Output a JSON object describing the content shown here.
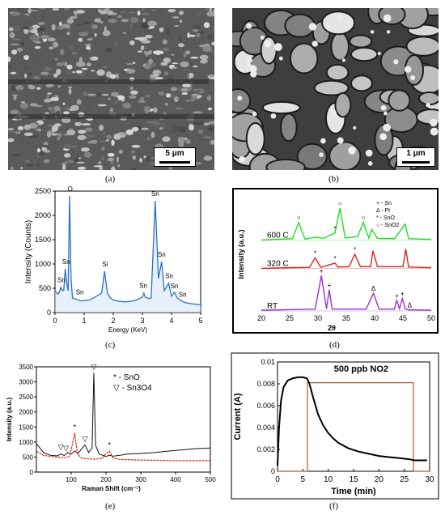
{
  "panels": {
    "a": {
      "caption": "(a)",
      "scale_label": "5 μm"
    },
    "b": {
      "caption": "(b)",
      "scale_label": "1 μm"
    },
    "c": {
      "caption": "(c)"
    },
    "d": {
      "caption": "(d)"
    },
    "e": {
      "caption": "(e)"
    },
    "f": {
      "caption": "(f)"
    }
  },
  "chart_data": [
    {
      "id": "c",
      "type": "line",
      "xlabel": "Energy (KeV)",
      "ylabel": "Intensity (Counts)",
      "xlim": [
        0,
        5
      ],
      "ylim": [
        0,
        2500
      ],
      "xticks": [
        "0",
        "1",
        "2",
        "3",
        "4",
        "5"
      ],
      "yticks": [
        "0",
        "500",
        "1000",
        "1500",
        "2000",
        "2500"
      ],
      "color": "#2f6fc4",
      "series": [
        {
          "x": [
            0.0,
            0.1,
            0.15,
            0.2,
            0.25,
            0.3,
            0.35,
            0.4,
            0.45,
            0.5,
            0.55,
            0.6,
            0.7,
            0.8,
            0.9,
            1.0,
            1.2,
            1.4,
            1.6,
            1.7,
            1.8,
            1.9,
            2.0,
            2.2,
            2.4,
            2.6,
            2.8,
            3.0,
            3.05,
            3.1,
            3.2,
            3.3,
            3.44,
            3.55,
            3.66,
            3.75,
            3.9,
            4.0,
            4.1,
            4.2,
            4.3,
            4.4,
            4.5,
            4.7,
            5.0
          ],
          "y": [
            450,
            380,
            420,
            520,
            450,
            460,
            900,
            620,
            450,
            2400,
            700,
            300,
            280,
            260,
            240,
            250,
            260,
            330,
            400,
            850,
            400,
            300,
            260,
            230,
            220,
            230,
            260,
            320,
            400,
            320,
            290,
            300,
            2300,
            700,
            1050,
            450,
            600,
            340,
            420,
            300,
            260,
            220,
            200,
            180,
            160
          ]
        }
      ],
      "annotations": [
        {
          "label": "O",
          "x": 0.52,
          "y": 2430
        },
        {
          "label": "Sn",
          "x": 0.22,
          "y": 560
        },
        {
          "label": "Sn",
          "x": 0.38,
          "y": 930
        },
        {
          "label": "Sn",
          "x": 0.85,
          "y": 310
        },
        {
          "label": "Si",
          "x": 1.72,
          "y": 880
        },
        {
          "label": "Sn",
          "x": 3.03,
          "y": 440
        },
        {
          "label": "Sn",
          "x": 3.44,
          "y": 2330
        },
        {
          "label": "Sn",
          "x": 3.66,
          "y": 1080
        },
        {
          "label": "Sn",
          "x": 3.92,
          "y": 640
        },
        {
          "label": "Sn",
          "x": 4.1,
          "y": 430
        },
        {
          "label": "Sn",
          "x": 4.38,
          "y": 260
        }
      ]
    },
    {
      "id": "d",
      "type": "line",
      "xlabel": "2θ",
      "ylabel": "Intensity (a.u.)",
      "xlim": [
        20,
        50
      ],
      "xticks": [
        "20",
        "25",
        "30",
        "35",
        "40",
        "45",
        "50"
      ],
      "legend": [
        "+ - Sn",
        "Δ - Pt",
        "* - SnO",
        "○ - SnO2"
      ],
      "series": [
        {
          "name": "600 C",
          "color": "#22dd22",
          "offset": 2.0,
          "x": [
            20,
            25.5,
            26.6,
            27.7,
            29.5,
            31.0,
            33.0,
            33.9,
            34.8,
            37.0,
            38.0,
            39.0,
            39.5,
            40.5,
            43.5,
            45.4,
            46.0,
            48.0,
            50
          ],
          "y": [
            0,
            0.04,
            0.5,
            0.03,
            0.08,
            0.05,
            0.2,
            0.9,
            0.06,
            0.1,
            0.5,
            0.05,
            0.3,
            0.05,
            0.04,
            0.45,
            0.04,
            0.03,
            0.02
          ]
        },
        {
          "name": "320 C",
          "color": "#dd2222",
          "offset": 1.2,
          "x": [
            20,
            25,
            28.5,
            29.5,
            30.5,
            33.0,
            33.5,
            35.5,
            36.5,
            37.5,
            39.3,
            39.7,
            40.5,
            45.0,
            45.5,
            46.0,
            50
          ],
          "y": [
            0,
            0.02,
            0.03,
            0.3,
            0.03,
            0.15,
            0.04,
            0.05,
            0.4,
            0.05,
            0.05,
            0.5,
            0.05,
            0.05,
            0.55,
            0.04,
            0.02
          ]
        },
        {
          "name": "RT",
          "color": "#9933cc",
          "offset": 0.0,
          "x": [
            20,
            29.5,
            30.6,
            31.5,
            32.0,
            32.5,
            38.5,
            39.8,
            40.8,
            43.5,
            43.9,
            44.4,
            44.9,
            45.4,
            46.0,
            50
          ],
          "y": [
            0.02,
            0.05,
            1.0,
            0.06,
            0.6,
            0.05,
            0.05,
            0.5,
            0.05,
            0.05,
            0.3,
            0.06,
            0.35,
            0.06,
            0.03,
            0.02
          ]
        }
      ],
      "annotations": [
        {
          "label": "+",
          "x": 30.6,
          "s": "RT"
        },
        {
          "label": "+",
          "x": 32.0,
          "s": "RT"
        },
        {
          "label": "Δ",
          "x": 39.8,
          "s": "RT"
        },
        {
          "label": "+",
          "x": 43.9,
          "s": "RT"
        },
        {
          "label": "+",
          "x": 44.9,
          "s": "RT"
        },
        {
          "label": "Δ",
          "x": 46.2,
          "s": "RT"
        },
        {
          "label": "*",
          "x": 29.5,
          "s": "320 C"
        },
        {
          "label": "*",
          "x": 33.0,
          "s": "320 C"
        },
        {
          "label": "*",
          "x": 36.5,
          "s": "320 C"
        },
        {
          "label": "○",
          "x": 26.6,
          "s": "600 C"
        },
        {
          "label": "*",
          "x": 33.0,
          "s": "600 C"
        },
        {
          "label": "○",
          "x": 33.9,
          "s": "600 C"
        },
        {
          "label": "○",
          "x": 38.0,
          "s": "600 C"
        }
      ]
    },
    {
      "id": "e",
      "type": "line",
      "xlabel": "Raman Shift (cm⁻¹)",
      "ylabel": "Intensity (a.u.)",
      "xlim": [
        0,
        500
      ],
      "ylim": [
        0,
        3500
      ],
      "xticks": [
        "100",
        "200",
        "300",
        "400",
        "500"
      ],
      "yticks": [
        "0",
        "500",
        "1000",
        "1500",
        "2000",
        "2500",
        "3000",
        "3500"
      ],
      "legend": [
        "* - SnO",
        "▽ - Sn3O4"
      ],
      "series": [
        {
          "name": "black",
          "color": "#111111",
          "x": [
            0,
            20,
            40,
            60,
            70,
            80,
            90,
            100,
            110,
            120,
            130,
            140,
            150,
            160,
            165,
            170,
            180,
            190,
            200,
            210,
            220,
            240,
            260,
            300,
            340,
            380,
            420,
            460,
            500
          ],
          "y": [
            950,
            650,
            560,
            540,
            600,
            550,
            650,
            600,
            700,
            620,
            780,
            900,
            650,
            800,
            3300,
            900,
            600,
            560,
            520,
            560,
            530,
            560,
            600,
            620,
            650,
            700,
            740,
            780,
            800
          ]
        },
        {
          "name": "red",
          "color": "#cc3322",
          "x": [
            0,
            20,
            40,
            60,
            80,
            95,
            105,
            110,
            118,
            130,
            150,
            170,
            190,
            200,
            210,
            220,
            240,
            300,
            400,
            500
          ],
          "y": [
            700,
            560,
            520,
            500,
            480,
            520,
            1000,
            1300,
            600,
            460,
            440,
            430,
            460,
            620,
            700,
            470,
            420,
            400,
            380,
            380
          ]
        }
      ],
      "annotations": [
        {
          "label": "*",
          "x": 110,
          "y": 1420
        },
        {
          "label": "*",
          "x": 210,
          "y": 820
        },
        {
          "label": "▽",
          "x": 165,
          "y": 3420
        },
        {
          "label": "▽",
          "x": 140,
          "y": 1020
        },
        {
          "label": "▽",
          "x": 85,
          "y": 720
        },
        {
          "label": "▽",
          "x": 70,
          "y": 750
        }
      ]
    },
    {
      "id": "f",
      "type": "line",
      "title": "500 ppb NO2",
      "xlabel": "Time (min)",
      "ylabel": "Current (A)",
      "xlim": [
        0,
        30
      ],
      "ylim": [
        0,
        0.01
      ],
      "xticks": [
        "0",
        "5",
        "10",
        "15",
        "20",
        "25",
        "30"
      ],
      "yticks": [
        "0",
        "0.002",
        "0.004",
        "0.006",
        "0.008",
        "0.01"
      ],
      "series": [
        {
          "name": "current",
          "color": "#000000",
          "x": [
            0,
            0.3,
            0.7,
            1.2,
            2,
            3,
            4,
            5,
            5.8,
            6.3,
            7,
            8,
            9,
            10,
            11,
            12,
            14,
            16,
            18,
            20,
            22,
            24,
            26,
            27,
            28,
            29.5
          ],
          "y": [
            0.0005,
            0.004,
            0.0065,
            0.0077,
            0.0083,
            0.0085,
            0.0086,
            0.0086,
            0.0085,
            0.008,
            0.0068,
            0.0052,
            0.0042,
            0.0035,
            0.003,
            0.0026,
            0.0021,
            0.0018,
            0.0016,
            0.0014,
            0.0013,
            0.0012,
            0.0011,
            0.001,
            0.001,
            0.001
          ]
        },
        {
          "name": "gas",
          "color": "#b05a2a",
          "x": [
            0,
            5.9,
            5.9,
            26.8,
            26.8,
            30
          ],
          "y": [
            0,
            0,
            0.0081,
            0.0081,
            0,
            0
          ]
        }
      ]
    }
  ]
}
